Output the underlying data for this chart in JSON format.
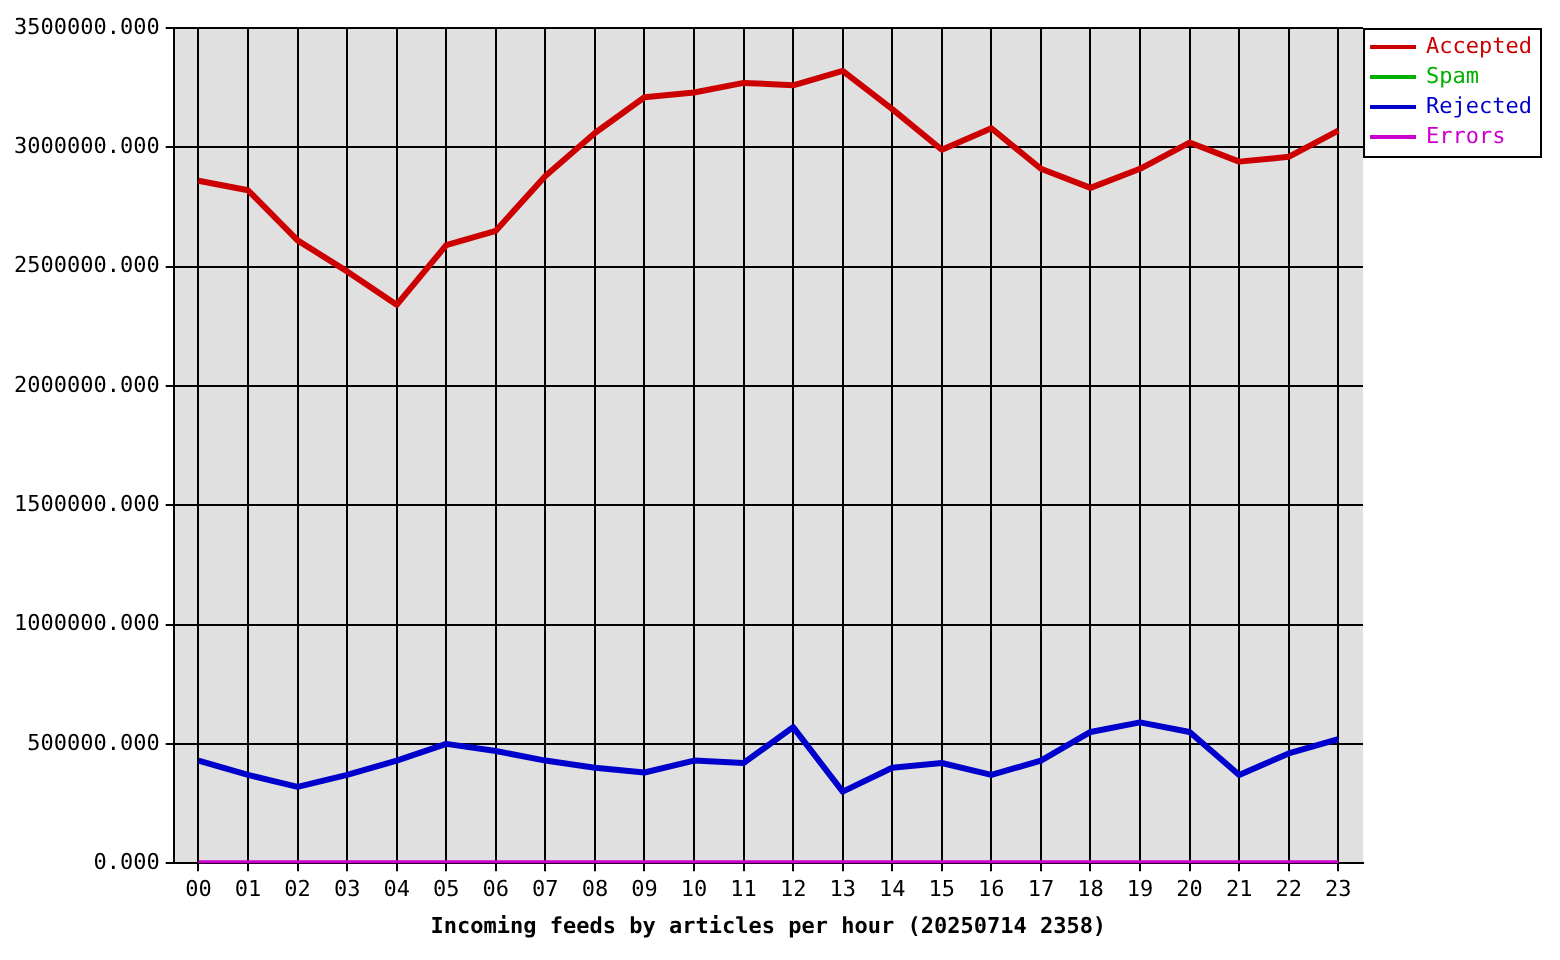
{
  "chart_data": {
    "type": "line",
    "xlabel": "Incoming feeds by articles per hour (20250714 2358)",
    "categories": [
      "00",
      "01",
      "02",
      "03",
      "04",
      "05",
      "06",
      "07",
      "08",
      "09",
      "10",
      "11",
      "12",
      "13",
      "14",
      "15",
      "16",
      "17",
      "18",
      "19",
      "20",
      "21",
      "22",
      "23"
    ],
    "series": [
      {
        "name": "Accepted",
        "color": "#cc0000",
        "values": [
          2860000,
          2820000,
          2610000,
          2480000,
          2340000,
          2590000,
          2650000,
          2880000,
          3060000,
          3210000,
          3230000,
          3270000,
          3260000,
          3320000,
          3160000,
          2990000,
          3080000,
          2910000,
          2830000,
          2910000,
          3020000,
          2940000,
          2960000,
          3070000
        ]
      },
      {
        "name": "Spam",
        "color": "#00b000",
        "values": [
          null,
          null,
          null,
          null,
          null,
          null,
          null,
          null,
          null,
          null,
          null,
          null,
          null,
          null,
          null,
          null,
          null,
          null,
          null,
          null,
          null,
          null,
          null,
          null
        ]
      },
      {
        "name": "Rejected",
        "color": "#0000cc",
        "values": [
          430000,
          370000,
          320000,
          370000,
          430000,
          500000,
          470000,
          430000,
          400000,
          380000,
          430000,
          420000,
          570000,
          300000,
          400000,
          420000,
          370000,
          430000,
          550000,
          590000,
          550000,
          370000,
          460000,
          520000
        ]
      },
      {
        "name": "Errors",
        "color": "#cc00cc",
        "values": [
          0,
          0,
          0,
          0,
          0,
          0,
          0,
          0,
          0,
          0,
          0,
          0,
          0,
          0,
          0,
          0,
          0,
          0,
          0,
          0,
          0,
          0,
          0,
          0
        ]
      }
    ],
    "ylim": [
      0,
      3500000
    ],
    "yticks": [
      {
        "value": 0,
        "label": "0.000"
      },
      {
        "value": 500000,
        "label": "500000.000"
      },
      {
        "value": 1000000,
        "label": "1000000.000"
      },
      {
        "value": 1500000,
        "label": "1500000.000"
      },
      {
        "value": 2000000,
        "label": "2000000.000"
      },
      {
        "value": 2500000,
        "label": "2500000.000"
      },
      {
        "value": 3000000,
        "label": "3000000.000"
      },
      {
        "value": 3500000,
        "label": "3500000.000"
      }
    ],
    "grid": true,
    "legend": "top right",
    "marker": "none",
    "line_style": "solid"
  }
}
